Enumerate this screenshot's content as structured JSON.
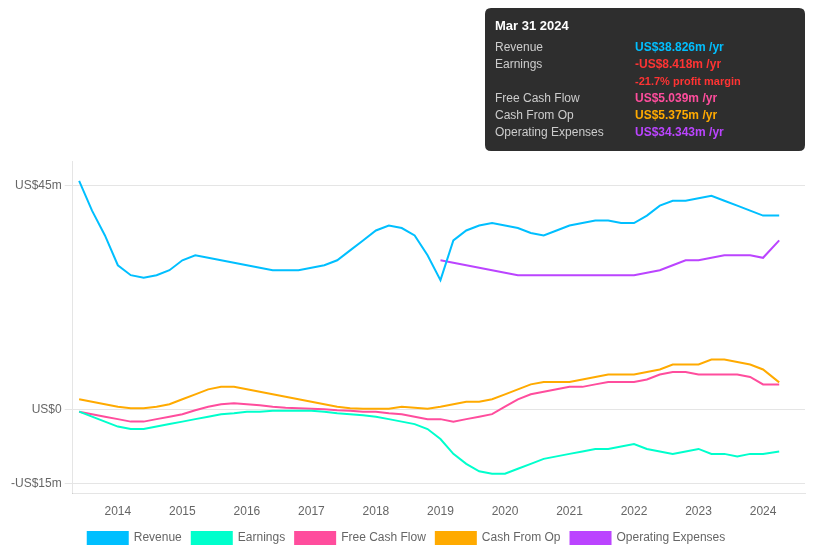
{
  "chart_data": {
    "type": "line",
    "x": [
      2013.4,
      2013.6,
      2013.8,
      2014.0,
      2014.2,
      2014.4,
      2014.6,
      2014.8,
      2015.0,
      2015.2,
      2015.4,
      2015.6,
      2015.8,
      2016.0,
      2016.2,
      2016.4,
      2016.6,
      2016.8,
      2017.0,
      2017.2,
      2017.4,
      2017.6,
      2017.8,
      2018.0,
      2018.2,
      2018.4,
      2018.6,
      2018.8,
      2019.0,
      2019.2,
      2019.4,
      2019.6,
      2019.8,
      2020.0,
      2020.2,
      2020.4,
      2020.6,
      2020.8,
      2021.0,
      2021.2,
      2021.4,
      2021.6,
      2021.8,
      2022.0,
      2022.2,
      2022.4,
      2022.6,
      2022.8,
      2023.0,
      2023.2,
      2023.4,
      2023.6,
      2023.8,
      2024.0,
      2024.25
    ],
    "series": [
      {
        "name": "Revenue",
        "color": "#00bfff",
        "values": [
          46,
          40,
          35,
          29,
          27,
          26.5,
          27,
          28,
          30,
          31,
          30.5,
          30,
          29.5,
          29,
          28.5,
          28,
          28,
          28,
          28.5,
          29,
          30,
          32,
          34,
          36,
          37,
          36.5,
          35,
          31,
          26,
          34,
          36,
          37,
          37.5,
          37,
          36.5,
          35.5,
          35,
          36,
          37,
          37.5,
          38,
          38,
          37.5,
          37.5,
          39,
          41,
          42,
          42,
          42.5,
          43,
          42,
          41,
          40,
          39,
          39
        ]
      },
      {
        "name": "Earnings",
        "color": "#00ffcc",
        "values": [
          -0.5,
          -1.5,
          -2.5,
          -3.5,
          -4,
          -4,
          -3.5,
          -3,
          -2.5,
          -2,
          -1.5,
          -1,
          -0.8,
          -0.5,
          -0.5,
          -0.3,
          -0.3,
          -0.3,
          -0.3,
          -0.5,
          -0.8,
          -1,
          -1.2,
          -1.5,
          -2,
          -2.5,
          -3,
          -4,
          -6,
          -9,
          -11,
          -12.5,
          -13,
          -13,
          -12,
          -11,
          -10,
          -9.5,
          -9,
          -8.5,
          -8,
          -8,
          -7.5,
          -7,
          -8,
          -8.5,
          -9,
          -8.5,
          -8,
          -9,
          -9,
          -9.5,
          -9,
          -9,
          -8.5
        ]
      },
      {
        "name": "Free Cash Flow",
        "color": "#ff4d9d",
        "values": [
          -0.5,
          -1,
          -1.5,
          -2,
          -2.5,
          -2.5,
          -2,
          -1.5,
          -1,
          -0.2,
          0.5,
          1,
          1.2,
          1,
          0.8,
          0.5,
          0.3,
          0.2,
          0.1,
          0,
          -0.2,
          -0.3,
          -0.5,
          -0.5,
          -0.8,
          -1,
          -1.5,
          -2,
          -2,
          -2.5,
          -2,
          -1.5,
          -1,
          0.5,
          2,
          3,
          3.5,
          4,
          4.5,
          4.5,
          5,
          5.5,
          5.5,
          5.5,
          6,
          7,
          7.5,
          7.5,
          7,
          7,
          7,
          7,
          6.5,
          5,
          5
        ]
      },
      {
        "name": "Cash From Op",
        "color": "#ffaa00",
        "values": [
          2,
          1.5,
          1,
          0.5,
          0.2,
          0.2,
          0.5,
          1,
          2,
          3,
          4,
          4.5,
          4.5,
          4,
          3.5,
          3,
          2.5,
          2,
          1.5,
          1,
          0.5,
          0.2,
          0.1,
          0.1,
          0.1,
          0.5,
          0.3,
          0.1,
          0.5,
          1,
          1.5,
          1.5,
          2,
          3,
          4,
          5,
          5.5,
          5.5,
          5.5,
          6,
          6.5,
          7,
          7,
          7,
          7.5,
          8,
          9,
          9,
          9,
          10,
          10,
          9.5,
          9,
          8,
          5.4
        ]
      },
      {
        "name": "Operating Expenses",
        "color": "#bb44ff",
        "values": [
          null,
          null,
          null,
          null,
          null,
          null,
          null,
          null,
          null,
          null,
          null,
          null,
          null,
          null,
          null,
          null,
          null,
          null,
          null,
          null,
          null,
          null,
          null,
          null,
          null,
          null,
          null,
          null,
          30,
          29.5,
          29,
          28.5,
          28,
          27.5,
          27,
          27,
          27,
          27,
          27,
          27,
          27,
          27,
          27,
          27,
          27.5,
          28,
          29,
          30,
          30,
          30.5,
          31,
          31,
          31,
          30.5,
          34
        ]
      }
    ],
    "xlim": [
      2013.3,
      2024.65
    ],
    "xticks": [
      2014,
      2015,
      2016,
      2017,
      2018,
      2019,
      2020,
      2021,
      2022,
      2023,
      2024
    ],
    "ylim": [
      -17,
      50
    ],
    "yticks": [
      {
        "value": 45,
        "label": "US$45m"
      },
      {
        "value": 0,
        "label": "US$0"
      },
      {
        "value": -15,
        "label": "-US$15m"
      }
    ],
    "grid": true,
    "legend": "bottom",
    "annotations": [
      {
        "text": "Mar 31 2024"
      },
      {
        "label": "Revenue",
        "text": "US$38.826m /yr",
        "color": "#00bfff"
      },
      {
        "label": "Earnings",
        "text": "-US$8.418m /yr",
        "color": "#ff3333"
      },
      {
        "text": "-21.7% profit margin",
        "color": "#ff3333"
      },
      {
        "label": "Free Cash Flow",
        "text": "US$5.039m /yr",
        "color": "#ff4d9d"
      },
      {
        "label": "Cash From Op",
        "text": "US$5.375m /yr",
        "color": "#ffaa00"
      },
      {
        "label": "Operating Expenses",
        "text": "US$34.343m /yr",
        "color": "#bb44ff"
      }
    ]
  }
}
